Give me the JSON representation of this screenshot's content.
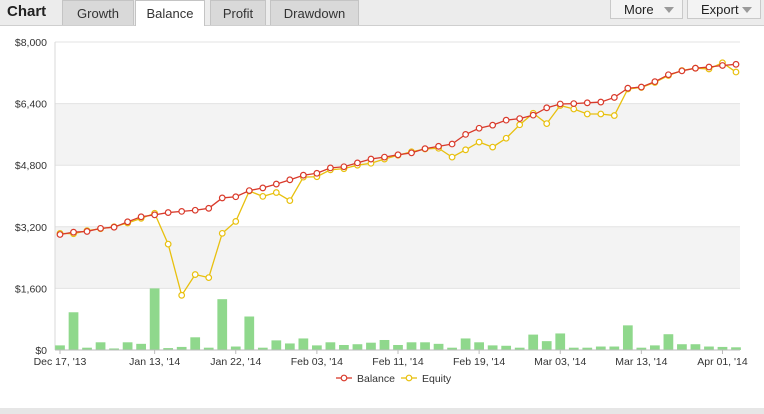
{
  "header": {
    "title": "Chart",
    "tabs": [
      {
        "label": "Growth",
        "active": false
      },
      {
        "label": "Balance",
        "active": true
      },
      {
        "label": "Profit",
        "active": false
      },
      {
        "label": "Drawdown",
        "active": false
      }
    ],
    "more_label": "More",
    "export_label": "Export"
  },
  "chart_data": {
    "type": "line",
    "ylim": [
      0,
      8000
    ],
    "yticks": [
      "$0",
      "$1,600",
      "$3,200",
      "$4,800",
      "$6,400",
      "$8,000"
    ],
    "x_labels": [
      "Dec 17, '13",
      "Jan 13, '14",
      "Jan 22, '14",
      "Feb 03, '14",
      "Feb 11, '14",
      "Feb 19, '14",
      "Mar 03, '14",
      "Mar 13, '14",
      "Apr 01, '14"
    ],
    "grid": true,
    "legend": "bottom-center",
    "series": [
      {
        "name": "Balance",
        "color": "#d93a2b",
        "values": [
          3000,
          3060,
          3080,
          3160,
          3190,
          3330,
          3460,
          3510,
          3570,
          3600,
          3630,
          3680,
          3950,
          3980,
          4140,
          4210,
          4310,
          4420,
          4540,
          4590,
          4730,
          4760,
          4860,
          4960,
          5010,
          5070,
          5120,
          5230,
          5290,
          5350,
          5600,
          5760,
          5840,
          5970,
          6010,
          6100,
          6290,
          6390,
          6400,
          6420,
          6440,
          6560,
          6800,
          6830,
          6970,
          7150,
          7250,
          7320,
          7350,
          7390,
          7420
        ]
      },
      {
        "name": "Equity",
        "color": "#e8c00e",
        "values": [
          3030,
          3020,
          3100,
          3150,
          3200,
          3300,
          3420,
          3550,
          2750,
          1420,
          1960,
          1880,
          3030,
          3340,
          4130,
          3990,
          4090,
          3880,
          4490,
          4500,
          4680,
          4710,
          4800,
          4850,
          4960,
          5060,
          5150,
          5220,
          5240,
          5010,
          5200,
          5400,
          5270,
          5500,
          5850,
          6150,
          5880,
          6350,
          6260,
          6130,
          6130,
          6090,
          6780,
          6820,
          6950,
          7130,
          7260,
          7320,
          7300,
          7460,
          7220
        ]
      },
      {
        "name": "",
        "color": "#8fd88c",
        "values": [
          120,
          980,
          60,
          200,
          40,
          200,
          160,
          1600,
          50,
          80,
          330,
          60,
          1320,
          90,
          870,
          60,
          250,
          170,
          300,
          120,
          200,
          130,
          150,
          190,
          260,
          130,
          200,
          200,
          160,
          60,
          300,
          200,
          120,
          110,
          60,
          400,
          230,
          430,
          60,
          60,
          90,
          90,
          640,
          60,
          120,
          410,
          150,
          150,
          90,
          80,
          70
        ]
      }
    ]
  }
}
